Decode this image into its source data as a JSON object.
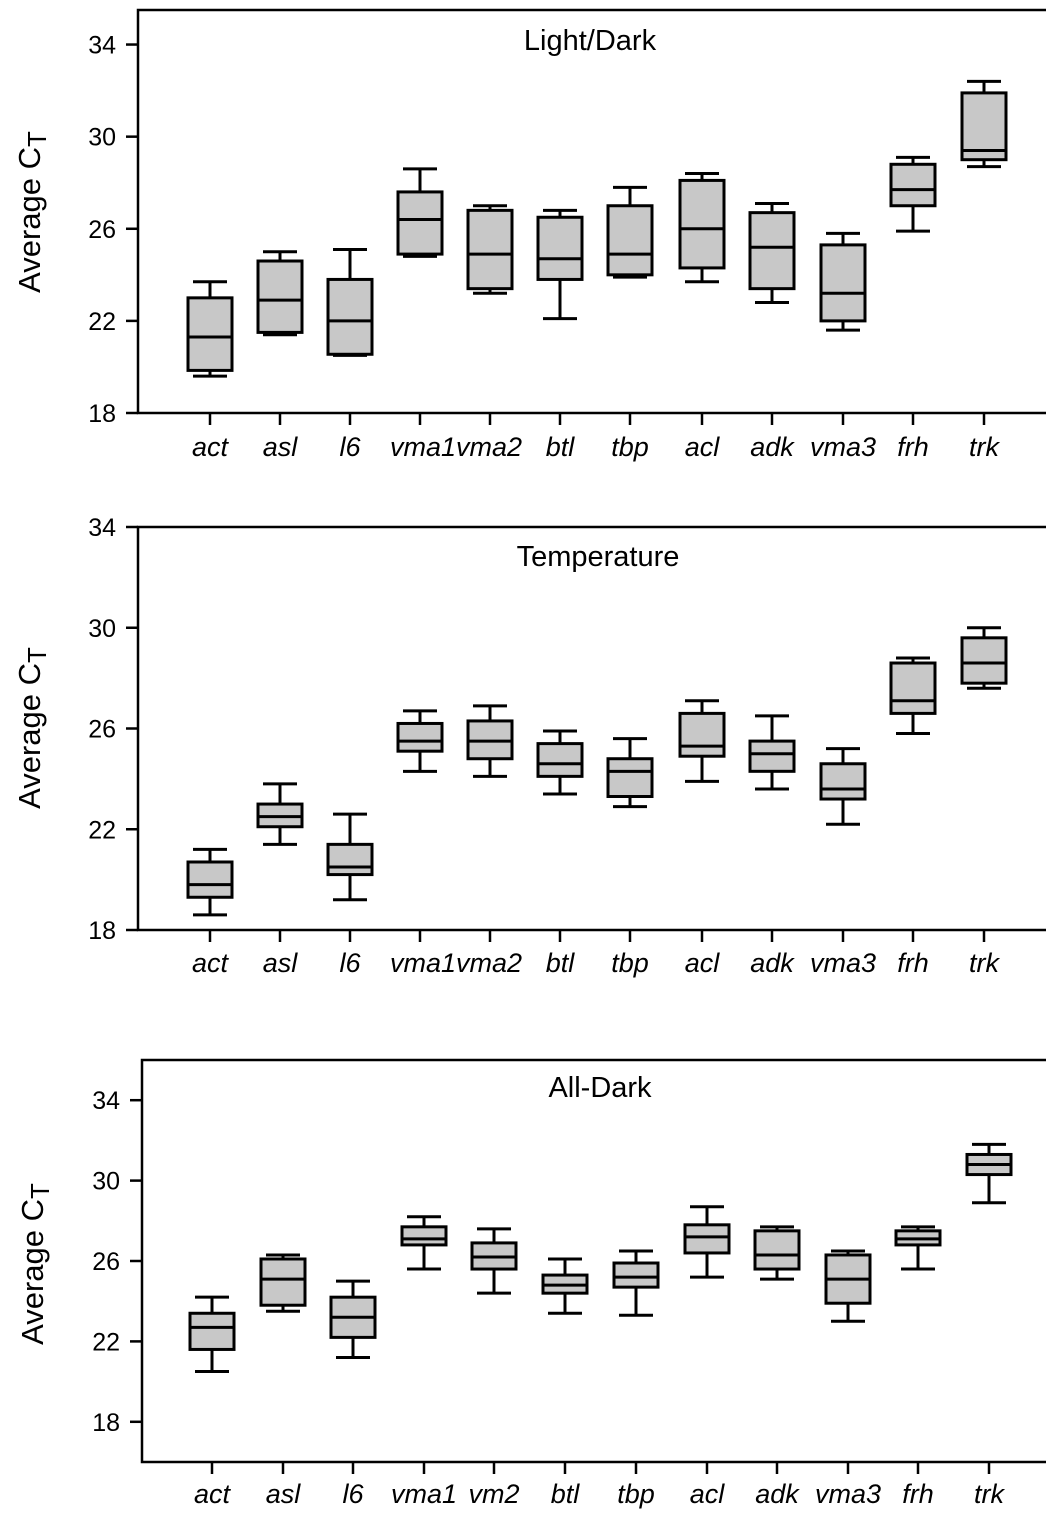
{
  "colors": {
    "box_fill": "#c8c8c8",
    "stroke": "#000000"
  },
  "chart_data": [
    {
      "type": "box",
      "title": "Light/Dark",
      "ylabel": "Average C",
      "ylabel_subscript": "T",
      "xlabel": "",
      "ylim": [
        18,
        35.5
      ],
      "yticks": [
        "18",
        "22",
        "26",
        "30",
        "34"
      ],
      "categories": [
        "act",
        "asl",
        "l6",
        "vma1",
        "vma2",
        "btl",
        "tbp",
        "acl",
        "adk",
        "vma3",
        "frh",
        "trk"
      ],
      "category_label_text": [
        "act",
        "asl",
        "l6",
        "vma1vma2",
        "btl",
        "tbp",
        "acl",
        "adk",
        "vma3",
        "frh",
        "trk"
      ],
      "boxes": [
        {
          "min": 19.6,
          "q1": 19.85,
          "median": 21.3,
          "q3": 23.0,
          "max": 23.7
        },
        {
          "min": 21.4,
          "q1": 21.5,
          "median": 22.9,
          "q3": 24.6,
          "max": 25.0
        },
        {
          "min": 20.5,
          "q1": 20.55,
          "median": 22.0,
          "q3": 23.8,
          "max": 25.1
        },
        {
          "min": 24.8,
          "q1": 24.9,
          "median": 26.4,
          "q3": 27.6,
          "max": 28.6
        },
        {
          "min": 23.2,
          "q1": 23.4,
          "median": 24.9,
          "q3": 26.8,
          "max": 27.0
        },
        {
          "min": 22.1,
          "q1": 23.8,
          "median": 24.7,
          "q3": 26.5,
          "max": 26.8
        },
        {
          "min": 23.9,
          "q1": 24.0,
          "median": 24.9,
          "q3": 27.0,
          "max": 27.8
        },
        {
          "min": 23.7,
          "q1": 24.3,
          "median": 26.0,
          "q3": 28.1,
          "max": 28.4
        },
        {
          "min": 22.8,
          "q1": 23.4,
          "median": 25.2,
          "q3": 26.7,
          "max": 27.1
        },
        {
          "min": 21.6,
          "q1": 22.0,
          "median": 23.2,
          "q3": 25.3,
          "max": 25.8
        },
        {
          "min": 25.9,
          "q1": 27.0,
          "median": 27.7,
          "q3": 28.8,
          "max": 29.1
        },
        {
          "min": 28.7,
          "q1": 29.0,
          "median": 29.4,
          "q3": 31.9,
          "max": 32.4
        }
      ]
    },
    {
      "type": "box",
      "title": "Temperature",
      "ylabel": "Average C",
      "ylabel_subscript": "T",
      "xlabel": "",
      "ylim": [
        18,
        34
      ],
      "yticks": [
        "18",
        "22",
        "26",
        "30",
        "34"
      ],
      "categories": [
        "act",
        "asl",
        "l6",
        "vma1",
        "vma2",
        "btl",
        "tbp",
        "acl",
        "adk",
        "vma3",
        "frh",
        "trk"
      ],
      "category_label_text": [
        "act",
        "asl",
        "l6",
        "vma1vma2",
        "btl",
        "tbp",
        "acl",
        "adk",
        "vma3",
        "frh",
        "trk"
      ],
      "boxes": [
        {
          "min": 18.6,
          "q1": 19.3,
          "median": 19.8,
          "q3": 20.7,
          "max": 21.2
        },
        {
          "min": 21.4,
          "q1": 22.1,
          "median": 22.5,
          "q3": 23.0,
          "max": 23.8
        },
        {
          "min": 19.2,
          "q1": 20.2,
          "median": 20.5,
          "q3": 21.4,
          "max": 22.6
        },
        {
          "min": 24.3,
          "q1": 25.1,
          "median": 25.5,
          "q3": 26.2,
          "max": 26.7
        },
        {
          "min": 24.1,
          "q1": 24.8,
          "median": 25.5,
          "q3": 26.3,
          "max": 26.9
        },
        {
          "min": 23.4,
          "q1": 24.1,
          "median": 24.6,
          "q3": 25.4,
          "max": 25.9
        },
        {
          "min": 22.9,
          "q1": 23.3,
          "median": 24.3,
          "q3": 24.8,
          "max": 25.6
        },
        {
          "min": 23.9,
          "q1": 24.9,
          "median": 25.3,
          "q3": 26.6,
          "max": 27.1
        },
        {
          "min": 23.6,
          "q1": 24.3,
          "median": 25.0,
          "q3": 25.5,
          "max": 26.5
        },
        {
          "min": 22.2,
          "q1": 23.2,
          "median": 23.6,
          "q3": 24.6,
          "max": 25.2
        },
        {
          "min": 25.8,
          "q1": 26.6,
          "median": 27.1,
          "q3": 28.6,
          "max": 28.8
        },
        {
          "min": 27.6,
          "q1": 27.8,
          "median": 28.6,
          "q3": 29.6,
          "max": 30.0
        }
      ]
    },
    {
      "type": "box",
      "title": "All-Dark",
      "ylabel": "Average C",
      "ylabel_subscript": "T",
      "xlabel": "",
      "ylim": [
        16,
        36
      ],
      "yticks": [
        "18",
        "22",
        "26",
        "30",
        "34"
      ],
      "categories": [
        "act",
        "asl",
        "l6",
        "vma1",
        "vm2",
        "btl",
        "tbp",
        "acl",
        "adk",
        "vma3",
        "frh",
        "trk"
      ],
      "category_label_text": [
        "act",
        "asl",
        "l6",
        "vma1",
        "vm2",
        "btl",
        "tbp",
        "acl",
        "adk",
        "vma3",
        "frh",
        "trk"
      ],
      "boxes": [
        {
          "min": 20.5,
          "q1": 21.6,
          "median": 22.7,
          "q3": 23.4,
          "max": 24.2
        },
        {
          "min": 23.5,
          "q1": 23.8,
          "median": 25.1,
          "q3": 26.1,
          "max": 26.3
        },
        {
          "min": 21.2,
          "q1": 22.2,
          "median": 23.2,
          "q3": 24.2,
          "max": 25.0
        },
        {
          "min": 25.6,
          "q1": 26.8,
          "median": 27.1,
          "q3": 27.7,
          "max": 28.2
        },
        {
          "min": 24.4,
          "q1": 25.6,
          "median": 26.2,
          "q3": 26.9,
          "max": 27.6
        },
        {
          "min": 23.4,
          "q1": 24.4,
          "median": 24.8,
          "q3": 25.3,
          "max": 26.1
        },
        {
          "min": 23.3,
          "q1": 24.7,
          "median": 25.2,
          "q3": 25.9,
          "max": 26.5
        },
        {
          "min": 25.2,
          "q1": 26.4,
          "median": 27.2,
          "q3": 27.8,
          "max": 28.7
        },
        {
          "min": 25.1,
          "q1": 25.6,
          "median": 26.3,
          "q3": 27.5,
          "max": 27.7
        },
        {
          "min": 23.0,
          "q1": 23.9,
          "median": 25.1,
          "q3": 26.3,
          "max": 26.5
        },
        {
          "min": 25.6,
          "q1": 26.8,
          "median": 27.1,
          "q3": 27.5,
          "max": 27.7
        },
        {
          "min": 28.9,
          "q1": 30.3,
          "median": 30.8,
          "q3": 31.3,
          "max": 31.8
        }
      ]
    }
  ]
}
